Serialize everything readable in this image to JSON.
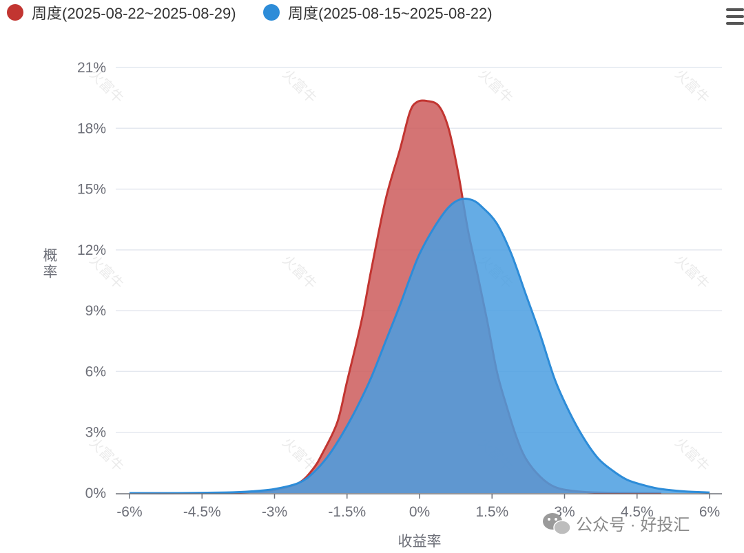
{
  "legend": [
    {
      "label": "周度(2025-08-22~2025-08-29)",
      "color": "#c23531"
    },
    {
      "label": "周度(2025-08-15~2025-08-22)",
      "color": "#2d8cd8"
    }
  ],
  "menu_icon": "hamburger-menu-icon",
  "watermark": {
    "text": "火富牛"
  },
  "wechat_badge": {
    "icon": "wechat-icon",
    "text": "公众号 · 好投汇"
  },
  "chart_data": {
    "type": "area",
    "xlabel": "收益率",
    "ylabel": "概率",
    "xlim": [
      -6,
      6
    ],
    "ylim": [
      0,
      21
    ],
    "x_ticks": [
      -6,
      -4.5,
      -3,
      -1.5,
      0,
      1.5,
      3,
      4.5,
      6
    ],
    "x_tick_labels": [
      "-6%",
      "-4.5%",
      "-3%",
      "-1.5%",
      "0%",
      "1.5%",
      "3%",
      "4.5%",
      "6%"
    ],
    "y_ticks": [
      0,
      3,
      6,
      9,
      12,
      15,
      18,
      21
    ],
    "y_tick_labels": [
      "0%",
      "3%",
      "6%",
      "9%",
      "12%",
      "15%",
      "18%",
      "21%"
    ],
    "grid": true,
    "legend_position": "top-left",
    "series": [
      {
        "name": "周度(2025-08-22~2025-08-29)",
        "color": "#c23531",
        "fill": "#cd5c5c",
        "points": [
          [
            -6,
            0
          ],
          [
            -4.5,
            0
          ],
          [
            -3.5,
            0.05
          ],
          [
            -3,
            0.15
          ],
          [
            -2.5,
            0.5
          ],
          [
            -2.2,
            1.2
          ],
          [
            -2,
            2.0
          ],
          [
            -1.7,
            3.5
          ],
          [
            -1.5,
            5.5
          ],
          [
            -1.2,
            8.5
          ],
          [
            -1,
            11
          ],
          [
            -0.7,
            14.5
          ],
          [
            -0.4,
            17
          ],
          [
            -0.2,
            18.8
          ],
          [
            -0.05,
            19.3
          ],
          [
            0.15,
            19.35
          ],
          [
            0.4,
            19.1
          ],
          [
            0.6,
            18
          ],
          [
            0.8,
            15.8
          ],
          [
            1,
            13
          ],
          [
            1.2,
            10.8
          ],
          [
            1.4,
            8.5
          ],
          [
            1.6,
            6
          ],
          [
            1.8,
            4.3
          ],
          [
            2,
            2.8
          ],
          [
            2.2,
            1.7
          ],
          [
            2.5,
            0.8
          ],
          [
            2.8,
            0.3
          ],
          [
            3.2,
            0.1
          ],
          [
            3.8,
            0.02
          ],
          [
            5,
            0
          ]
        ]
      },
      {
        "name": "周度(2025-08-15~2025-08-22)",
        "color": "#2d8cd8",
        "fill": "#4a9de0",
        "points": [
          [
            -6,
            0
          ],
          [
            -5,
            0
          ],
          [
            -4,
            0.03
          ],
          [
            -3.5,
            0.08
          ],
          [
            -3,
            0.2
          ],
          [
            -2.5,
            0.5
          ],
          [
            -2.2,
            1.0
          ],
          [
            -1.9,
            1.8
          ],
          [
            -1.6,
            2.9
          ],
          [
            -1.3,
            4.2
          ],
          [
            -1,
            5.7
          ],
          [
            -0.7,
            7.5
          ],
          [
            -0.4,
            9.3
          ],
          [
            -0.2,
            10.6
          ],
          [
            0,
            11.8
          ],
          [
            0.3,
            13.1
          ],
          [
            0.6,
            14.1
          ],
          [
            0.85,
            14.5
          ],
          [
            1.1,
            14.45
          ],
          [
            1.3,
            14.1
          ],
          [
            1.6,
            13.3
          ],
          [
            1.9,
            11.8
          ],
          [
            2.2,
            9.8
          ],
          [
            2.5,
            7.8
          ],
          [
            2.8,
            5.6
          ],
          [
            3.1,
            4.0
          ],
          [
            3.4,
            2.7
          ],
          [
            3.7,
            1.7
          ],
          [
            4,
            1.1
          ],
          [
            4.3,
            0.65
          ],
          [
            4.7,
            0.35
          ],
          [
            5,
            0.2
          ],
          [
            5.5,
            0.08
          ],
          [
            6,
            0.03
          ]
        ]
      }
    ]
  }
}
